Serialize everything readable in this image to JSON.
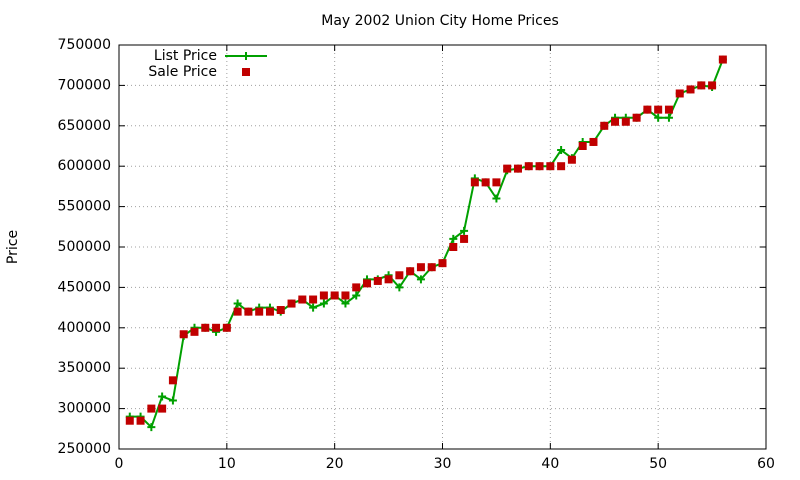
{
  "chart_data": {
    "type": "line",
    "title": "May 2002 Union City Home Prices",
    "y_label": "Price",
    "x": [
      1,
      2,
      3,
      4,
      5,
      6,
      7,
      8,
      9,
      10,
      11,
      12,
      13,
      14,
      15,
      16,
      17,
      18,
      19,
      20,
      21,
      22,
      23,
      24,
      25,
      26,
      27,
      28,
      29,
      30,
      31,
      32,
      33,
      34,
      35,
      36,
      37,
      38,
      39,
      40,
      41,
      42,
      43,
      44,
      45,
      46,
      47,
      48,
      49,
      50,
      51,
      52,
      53,
      54,
      55,
      56
    ],
    "series": [
      {
        "name": "List Price",
        "color": "#00a000",
        "style": "linespoints",
        "values": [
          290000,
          290000,
          277000,
          315000,
          310000,
          390000,
          400000,
          400000,
          395000,
          400000,
          430000,
          420000,
          425000,
          425000,
          420000,
          430000,
          435000,
          425000,
          430000,
          440000,
          430000,
          440000,
          460000,
          460000,
          465000,
          450000,
          470000,
          460000,
          475000,
          480000,
          510000,
          520000,
          585000,
          580000,
          560000,
          595000,
          597000,
          600000,
          600000,
          600000,
          620000,
          610000,
          630000,
          630000,
          650000,
          660000,
          660000,
          660000,
          670000,
          660000,
          660000,
          690000,
          695000,
          700000,
          698000,
          732000
        ]
      },
      {
        "name": "Sale Price",
        "color": "#c00000",
        "style": "points",
        "values": [
          285000,
          285000,
          300000,
          300000,
          335000,
          392000,
          395000,
          400000,
          400000,
          400000,
          420000,
          420000,
          420000,
          420000,
          422000,
          430000,
          435000,
          435000,
          440000,
          440000,
          440000,
          450000,
          455000,
          458000,
          460000,
          465000,
          470000,
          475000,
          475000,
          480000,
          500000,
          510000,
          580000,
          580000,
          580000,
          597000,
          597000,
          600000,
          600000,
          600000,
          600000,
          608000,
          625000,
          630000,
          650000,
          655000,
          655000,
          660000,
          670000,
          670000,
          670000,
          690000,
          695000,
          700000,
          700000,
          732000
        ]
      }
    ],
    "xlim": [
      0,
      60
    ],
    "xticks": [
      0,
      10,
      20,
      30,
      40,
      50,
      60
    ],
    "ylim": [
      250000,
      750000
    ],
    "yticks": [
      250000,
      300000,
      350000,
      400000,
      450000,
      500000,
      550000,
      600000,
      650000,
      700000,
      750000
    ],
    "grid": true,
    "legend": "top-left"
  }
}
